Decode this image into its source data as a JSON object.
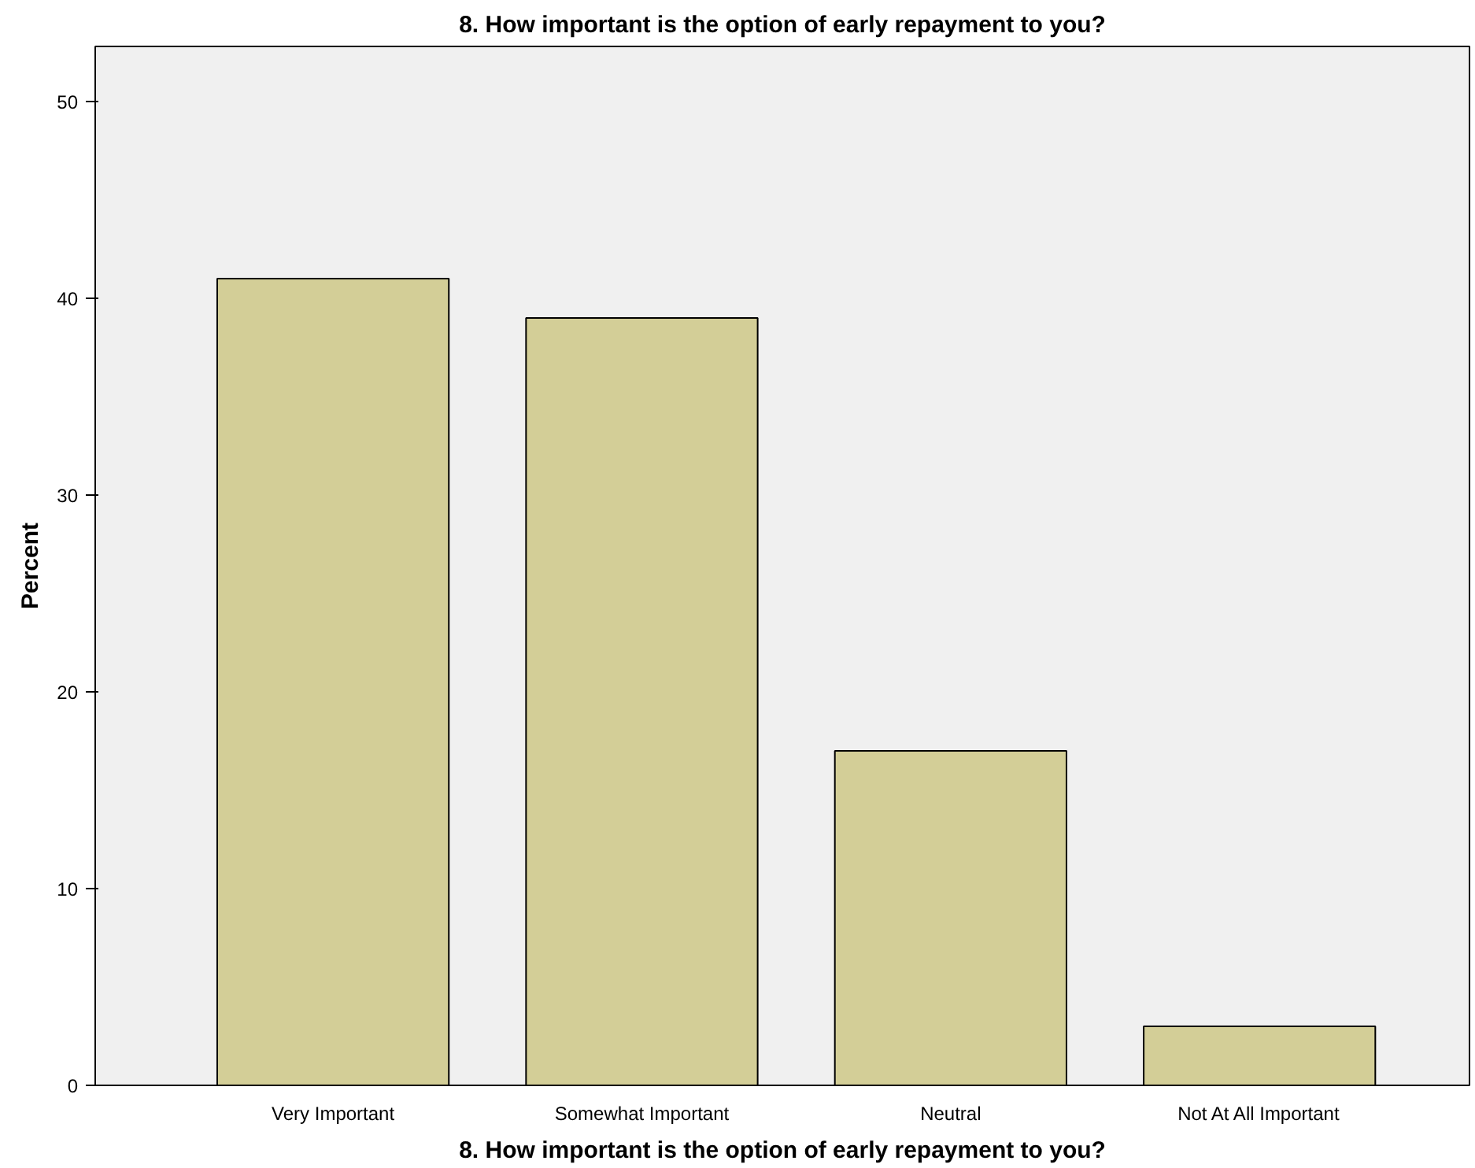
{
  "chart_data": {
    "type": "bar",
    "title": "8. How important is the option of early repayment to you?",
    "xlabel": "8. How important is the option of early repayment to you?",
    "ylabel": "Percent",
    "categories": [
      "Very Important",
      "Somewhat Important",
      "Neutral",
      "Not At All Important"
    ],
    "values": [
      41,
      39,
      17,
      3
    ],
    "color": "#d3ce97",
    "ylim": [
      0,
      52.8
    ],
    "yticks": [
      0,
      10,
      20,
      30,
      40,
      50
    ],
    "grid": false
  }
}
